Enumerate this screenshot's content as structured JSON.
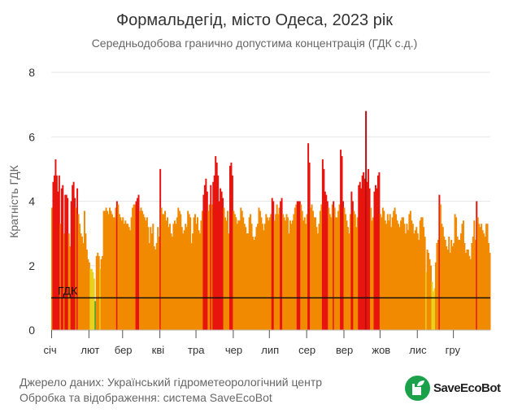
{
  "title": "Формальдегід, місто Одеса, 2023 рік",
  "subtitle": "Середньодобова гранично допустима концентрація (ГДК с.д.)",
  "footer": {
    "source": "Джерело даних: Український гідрометеорологічний центр",
    "processing": "Обробка та відображення: система SaveEcoBot",
    "logo_text": "SaveEcoBot"
  },
  "colors": {
    "green": "#3aa53a",
    "yellow": "#e8d21c",
    "orange": "#f28a00",
    "red": "#e8140f",
    "darkred": "#b10d0d",
    "grid": "#e6e6e6",
    "line": "#111111"
  },
  "chart_data": {
    "type": "bar",
    "title": "Формальдегід, місто Одеса, 2023 рік",
    "ylabel": "Кратність ГДК",
    "xlabel": "",
    "ylim": [
      0,
      8
    ],
    "yticks": [
      "0",
      "2",
      "4",
      "6",
      "8"
    ],
    "grid": true,
    "reference_line": {
      "value": 1,
      "label": "ГДК"
    },
    "months": [
      "січ",
      "лют",
      "бер",
      "кві",
      "тра",
      "чер",
      "лип",
      "сер",
      "вер",
      "жов",
      "лис",
      "гру"
    ],
    "month_days": [
      31,
      28,
      31,
      30,
      31,
      30,
      31,
      31,
      30,
      31,
      30,
      31
    ],
    "daily_values": [
      3.8,
      4.6,
      4.8,
      5.3,
      4.8,
      4.3,
      4.8,
      3.3,
      4.4,
      4.5,
      3.0,
      4.2,
      4.2,
      4.1,
      3.0,
      2.6,
      4.0,
      4.5,
      4.6,
      4.1,
      3.8,
      4.4,
      3.6,
      3.3,
      3.0,
      2.9,
      2.7,
      3.7,
      3.0,
      2.5,
      2.2,
      2.1,
      1.9,
      1.9,
      1.8,
      1.6,
      0.9,
      2.3,
      2.4,
      2.3,
      1.9,
      2.2,
      2.3,
      3.7,
      3.7,
      3.8,
      3.7,
      3.6,
      3.8,
      3.7,
      3.6,
      3.5,
      3.5,
      3.8,
      4.0,
      3.9,
      3.6,
      3.5,
      3.4,
      3.5,
      3.3,
      3.4,
      3.3,
      3.3,
      3.2,
      3.1,
      3.5,
      3.8,
      3.9,
      3.9,
      4.0,
      4.1,
      4.2,
      3.7,
      3.8,
      3.7,
      3.6,
      3.5,
      3.4,
      3.5,
      3.2,
      2.7,
      3.2,
      3.0,
      3.3,
      2.6,
      2.5,
      2.7,
      3.2,
      2.9,
      5.0,
      3.8,
      3.6,
      3.6,
      3.7,
      3.4,
      3.5,
      3.2,
      3.3,
      3.0,
      2.9,
      3.3,
      3.4,
      3.3,
      3.5,
      3.8,
      3.7,
      3.6,
      3.2,
      3.0,
      3.1,
      3.3,
      3.2,
      3.7,
      3.6,
      3.5,
      2.7,
      3.0,
      3.5,
      3.6,
      3.3,
      3.5,
      3.1,
      3.0,
      3.4,
      3.7,
      4.2,
      4.5,
      4.7,
      4.3,
      3.7,
      3.9,
      4.5,
      3.9,
      4.6,
      4.8,
      5.4,
      5.2,
      4.8,
      4.0,
      4.4,
      4.3,
      4.1,
      3.8,
      3.5,
      3.4,
      3.7,
      3.0,
      5.1,
      5.2,
      4.8,
      3.7,
      3.6,
      3.5,
      3.3,
      3.4,
      3.4,
      3.8,
      3.7,
      3.5,
      3.3,
      3.2,
      3.0,
      3.0,
      3.5,
      3.6,
      3.3,
      2.9,
      2.8,
      2.9,
      3.2,
      3.3,
      3.8,
      3.7,
      3.5,
      3.3,
      3.1,
      3.3,
      3.6,
      3.5,
      3.4,
      3.5,
      3.6,
      4.1,
      4.0,
      3.4,
      3.6,
      3.9,
      3.6,
      3.8,
      4.0,
      4.1,
      3.6,
      3.5,
      3.4,
      3.6,
      3.5,
      3.0,
      3.4,
      3.3,
      3.4,
      3.6,
      3.8,
      3.9,
      4.0,
      4.0,
      4.0,
      3.9,
      3.7,
      3.4,
      3.5,
      3.3,
      3.6,
      5.8,
      5.2,
      3.8,
      3.9,
      3.7,
      3.5,
      3.5,
      3.2,
      3.0,
      3.3,
      3.7,
      3.9,
      5.3,
      5.0,
      4.3,
      4.2,
      4.0,
      3.8,
      3.6,
      3.5,
      3.9,
      4.0,
      3.8,
      3.5,
      3.5,
      3.7,
      3.9,
      5.6,
      5.4,
      4.0,
      3.8,
      3.6,
      3.4,
      3.2,
      3.0,
      3.6,
      4.3,
      4.0,
      3.7,
      3.6,
      3.2,
      3.5,
      4.5,
      4.6,
      4.4,
      4.8,
      4.9,
      4.7,
      6.8,
      4.6,
      5.0,
      4.4,
      3.8,
      3.4,
      3.5,
      4.3,
      4.5,
      4.4,
      4.8,
      4.9,
      3.6,
      3.5,
      3.8,
      3.7,
      3.4,
      3.3,
      3.6,
      3.4,
      3.6,
      3.2,
      3.5,
      3.7,
      3.8,
      3.6,
      3.4,
      3.3,
      3.2,
      3.4,
      3.5,
      3.5,
      3.3,
      3.0,
      3.3,
      3.1,
      3.6,
      3.7,
      3.4,
      3.3,
      3.0,
      3.1,
      3.2,
      3.0,
      2.8,
      3.4,
      3.5,
      3.5,
      3.2,
      2.9,
      1.8,
      2.5,
      2.4,
      2.2,
      2.0,
      1.5,
      1.2,
      1.3,
      2.1,
      2.7,
      2.8,
      4.2,
      3.9,
      3.3,
      3.2,
      2.9,
      2.8,
      2.6,
      2.5,
      2.9,
      2.4,
      2.8,
      2.6,
      2.7,
      3.6,
      3.5,
      2.9,
      2.8,
      2.8,
      3.0,
      3.3,
      3.4,
      2.7,
      2.4,
      2.5,
      2.5,
      2.3,
      2.2,
      2.7,
      2.9,
      3.4,
      2.8,
      4.0,
      3.5,
      3.3,
      3.2,
      3.3,
      3.1,
      3.0,
      2.9,
      3.3,
      3.3,
      2.7,
      2.4
    ]
  }
}
